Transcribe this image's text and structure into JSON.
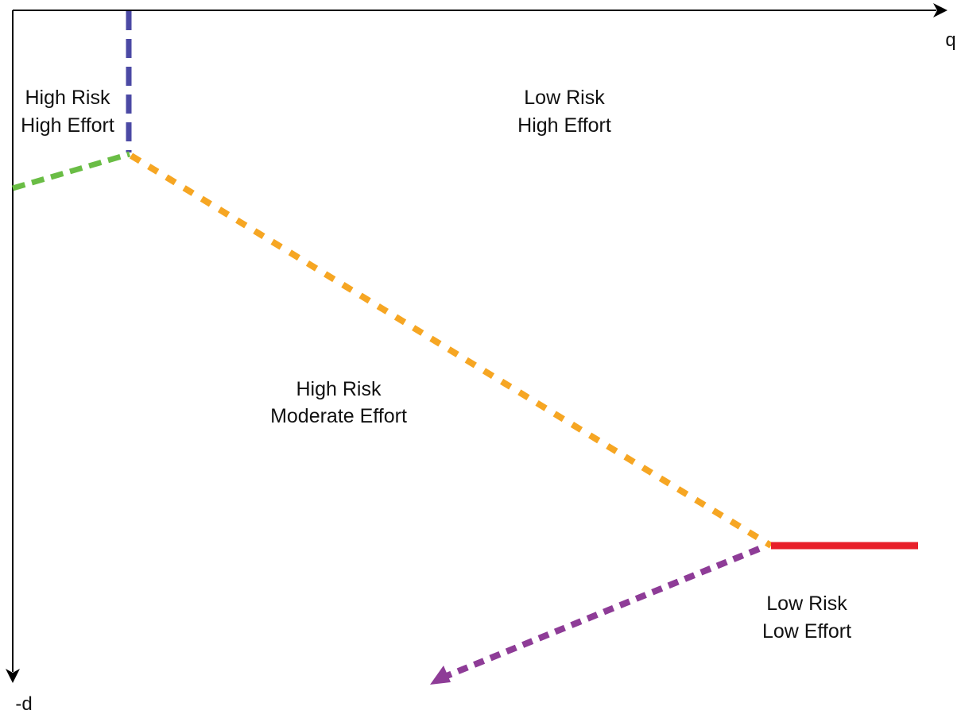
{
  "axes": {
    "x_label": "q",
    "y_label": "-d"
  },
  "regions": {
    "top_left": {
      "line1": "High Risk",
      "line2": "High Effort"
    },
    "top_right": {
      "line1": "Low Risk",
      "line2": "High Effort"
    },
    "middle": {
      "line1": "High Risk",
      "line2": "Moderate Effort"
    },
    "bottom_right": {
      "line1": "Low Risk",
      "line2": "Low Effort"
    }
  },
  "colors": {
    "axis": "#000000",
    "blue_boundary": "#4b49a4",
    "green_boundary": "#6abd45",
    "orange_boundary": "#f6a623",
    "red_boundary": "#e8202a",
    "purple_boundary": "#8e3c97"
  }
}
